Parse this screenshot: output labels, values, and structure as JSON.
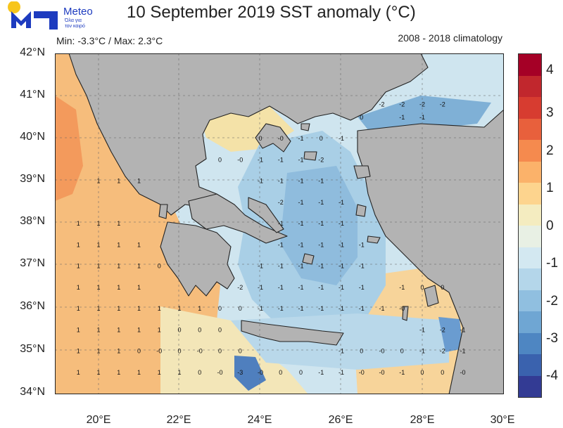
{
  "logo": {
    "brand": "Meteo",
    "tagline_1": "Όλα για",
    "tagline_2": "τον καιρό"
  },
  "title": "10 September 2019 SST anomaly (°C)",
  "minmax": "Min: -3.3°C / Max: 2.3°C",
  "climatology": "2008 - 2018 climatology",
  "lat_labels": [
    "42°N",
    "41°N",
    "40°N",
    "39°N",
    "38°N",
    "37°N",
    "36°N",
    "35°N",
    "34°N"
  ],
  "lon_labels": [
    "20°E",
    "22°E",
    "24°E",
    "26°E",
    "28°E",
    "30°E"
  ],
  "colorbar": {
    "colors": [
      "#a50026",
      "#c1272d",
      "#d73c30",
      "#e8603c",
      "#f58a4e",
      "#fbb26a",
      "#fdd48e",
      "#f4ecc0",
      "#e8f0e4",
      "#d3e8f1",
      "#b4d6ea",
      "#90bfe0",
      "#6fa6d3",
      "#4e86c2",
      "#3a62ae",
      "#333b94"
    ],
    "labels": [
      "4",
      "3",
      "2",
      "1",
      "0",
      "-1",
      "-2",
      "-3",
      "-4"
    ]
  },
  "grid_annotations": [
    {
      "lon": 20,
      "lat": 39,
      "t": "1"
    },
    {
      "lon": 20.5,
      "lat": 39,
      "t": "1"
    },
    {
      "lon": 21,
      "lat": 39,
      "t": "1"
    },
    {
      "lon": 19.5,
      "lat": 38,
      "t": "1"
    },
    {
      "lon": 20,
      "lat": 38,
      "t": "1"
    },
    {
      "lon": 20.5,
      "lat": 38,
      "t": "1"
    },
    {
      "lon": 19.5,
      "lat": 37.5,
      "t": "1"
    },
    {
      "lon": 20,
      "lat": 37.5,
      "t": "1"
    },
    {
      "lon": 20.5,
      "lat": 37.5,
      "t": "1"
    },
    {
      "lon": 21,
      "lat": 37.5,
      "t": "1"
    },
    {
      "lon": 19.5,
      "lat": 37,
      "t": "1"
    },
    {
      "lon": 20,
      "lat": 37,
      "t": "1"
    },
    {
      "lon": 20.5,
      "lat": 37,
      "t": "1"
    },
    {
      "lon": 21,
      "lat": 37,
      "t": "1"
    },
    {
      "lon": 21.5,
      "lat": 37,
      "t": "0"
    },
    {
      "lon": 19.5,
      "lat": 36.5,
      "t": "1"
    },
    {
      "lon": 20,
      "lat": 36.5,
      "t": "1"
    },
    {
      "lon": 20.5,
      "lat": 36.5,
      "t": "1"
    },
    {
      "lon": 21,
      "lat": 36.5,
      "t": "1"
    },
    {
      "lon": 19.5,
      "lat": 36,
      "t": "1"
    },
    {
      "lon": 20,
      "lat": 36,
      "t": "1"
    },
    {
      "lon": 20.5,
      "lat": 36,
      "t": "1"
    },
    {
      "lon": 21,
      "lat": 36,
      "t": "1"
    },
    {
      "lon": 21.5,
      "lat": 36,
      "t": "1"
    },
    {
      "lon": 22,
      "lat": 36,
      "t": "1"
    },
    {
      "lon": 22.5,
      "lat": 36,
      "t": "1"
    },
    {
      "lon": 19.5,
      "lat": 35.5,
      "t": "1"
    },
    {
      "lon": 20,
      "lat": 35.5,
      "t": "1"
    },
    {
      "lon": 20.5,
      "lat": 35.5,
      "t": "1"
    },
    {
      "lon": 21,
      "lat": 35.5,
      "t": "1"
    },
    {
      "lon": 21.5,
      "lat": 35.5,
      "t": "1"
    },
    {
      "lon": 22,
      "lat": 35.5,
      "t": "0"
    },
    {
      "lon": 22.5,
      "lat": 35.5,
      "t": "0"
    },
    {
      "lon": 23,
      "lat": 35.5,
      "t": "0"
    },
    {
      "lon": 19.5,
      "lat": 35,
      "t": "1"
    },
    {
      "lon": 20,
      "lat": 35,
      "t": "1"
    },
    {
      "lon": 20.5,
      "lat": 35,
      "t": "1"
    },
    {
      "lon": 21,
      "lat": 35,
      "t": "0"
    },
    {
      "lon": 21.5,
      "lat": 35,
      "t": "-0"
    },
    {
      "lon": 22,
      "lat": 35,
      "t": "0"
    },
    {
      "lon": 22.5,
      "lat": 35,
      "t": "-0"
    },
    {
      "lon": 23,
      "lat": 35,
      "t": "0"
    },
    {
      "lon": 23.5,
      "lat": 35,
      "t": "0"
    },
    {
      "lon": 19.5,
      "lat": 34.5,
      "t": "1"
    },
    {
      "lon": 20,
      "lat": 34.5,
      "t": "1"
    },
    {
      "lon": 20.5,
      "lat": 34.5,
      "t": "1"
    },
    {
      "lon": 21,
      "lat": 34.5,
      "t": "1"
    },
    {
      "lon": 21.5,
      "lat": 34.5,
      "t": "1"
    },
    {
      "lon": 22,
      "lat": 34.5,
      "t": "1"
    },
    {
      "lon": 22.5,
      "lat": 34.5,
      "t": "0"
    },
    {
      "lon": 23,
      "lat": 34.5,
      "t": "-0"
    },
    {
      "lon": 23.5,
      "lat": 34.5,
      "t": "-3"
    },
    {
      "lon": 24,
      "lat": 34.5,
      "t": "-0"
    },
    {
      "lon": 24.5,
      "lat": 34.5,
      "t": "0"
    },
    {
      "lon": 25,
      "lat": 34.5,
      "t": "0"
    },
    {
      "lon": 25.5,
      "lat": 34.5,
      "t": "-1"
    },
    {
      "lon": 26,
      "lat": 34.5,
      "t": "-1"
    },
    {
      "lon": 26.5,
      "lat": 34.5,
      "t": "-0"
    },
    {
      "lon": 27,
      "lat": 34.5,
      "t": "-0"
    },
    {
      "lon": 27.5,
      "lat": 34.5,
      "t": "-1"
    },
    {
      "lon": 28,
      "lat": 34.5,
      "t": "0"
    },
    {
      "lon": 28.5,
      "lat": 34.5,
      "t": "0"
    },
    {
      "lon": 29,
      "lat": 34.5,
      "t": "-0"
    },
    {
      "lon": 23,
      "lat": 36,
      "t": "0"
    },
    {
      "lon": 23.5,
      "lat": 36,
      "t": "0"
    },
    {
      "lon": 24,
      "lat": 36,
      "t": "-1"
    },
    {
      "lon": 24.5,
      "lat": 36,
      "t": "-1"
    },
    {
      "lon": 25,
      "lat": 36,
      "t": "-1"
    },
    {
      "lon": 25.5,
      "lat": 36,
      "t": "-1"
    },
    {
      "lon": 26,
      "lat": 36,
      "t": "-1"
    },
    {
      "lon": 26.5,
      "lat": 36,
      "t": "-1"
    },
    {
      "lon": 27,
      "lat": 36,
      "t": "-1"
    },
    {
      "lon": 27.5,
      "lat": 36,
      "t": "-0"
    },
    {
      "lon": 26,
      "lat": 35,
      "t": "-1"
    },
    {
      "lon": 26.5,
      "lat": 35,
      "t": "0"
    },
    {
      "lon": 27,
      "lat": 35,
      "t": "-0"
    },
    {
      "lon": 27.5,
      "lat": 35,
      "t": "0"
    },
    {
      "lon": 28,
      "lat": 35,
      "t": "-1"
    },
    {
      "lon": 28.5,
      "lat": 35,
      "t": "-2"
    },
    {
      "lon": 29,
      "lat": 35,
      "t": "-1"
    },
    {
      "lon": 28,
      "lat": 35.5,
      "t": "-1"
    },
    {
      "lon": 28.5,
      "lat": 35.5,
      "t": "-2"
    },
    {
      "lon": 29,
      "lat": 35.5,
      "t": "-1"
    },
    {
      "lon": 27.5,
      "lat": 36.5,
      "t": "-1"
    },
    {
      "lon": 28,
      "lat": 36.5,
      "t": "0"
    },
    {
      "lon": 28.5,
      "lat": 36.5,
      "t": "0"
    },
    {
      "lon": 23.5,
      "lat": 36.5,
      "t": "-2"
    },
    {
      "lon": 24,
      "lat": 36.5,
      "t": "-1"
    },
    {
      "lon": 24.5,
      "lat": 36.5,
      "t": "-1"
    },
    {
      "lon": 25,
      "lat": 36.5,
      "t": "-1"
    },
    {
      "lon": 25.5,
      "lat": 36.5,
      "t": "-1"
    },
    {
      "lon": 26,
      "lat": 36.5,
      "t": "-1"
    },
    {
      "lon": 26.5,
      "lat": 36.5,
      "t": "-1"
    },
    {
      "lon": 24,
      "lat": 37,
      "t": "-1"
    },
    {
      "lon": 24.5,
      "lat": 37,
      "t": "-1"
    },
    {
      "lon": 25,
      "lat": 37,
      "t": "-1"
    },
    {
      "lon": 25.5,
      "lat": 37,
      "t": "-1"
    },
    {
      "lon": 26,
      "lat": 37,
      "t": "-1"
    },
    {
      "lon": 26.5,
      "lat": 37,
      "t": "-1"
    },
    {
      "lon": 24.5,
      "lat": 37.5,
      "t": "-1"
    },
    {
      "lon": 25,
      "lat": 37.5,
      "t": "-1"
    },
    {
      "lon": 25.5,
      "lat": 37.5,
      "t": "-1"
    },
    {
      "lon": 26,
      "lat": 37.5,
      "t": "-1"
    },
    {
      "lon": 26.5,
      "lat": 37.5,
      "t": "-1"
    },
    {
      "lon": 24.5,
      "lat": 38,
      "t": "-1"
    },
    {
      "lon": 25,
      "lat": 38,
      "t": "-1"
    },
    {
      "lon": 25.5,
      "lat": 38,
      "t": "-1"
    },
    {
      "lon": 26,
      "lat": 38,
      "t": "-1"
    },
    {
      "lon": 24.5,
      "lat": 38.5,
      "t": "-2"
    },
    {
      "lon": 25,
      "lat": 38.5,
      "t": "-1"
    },
    {
      "lon": 25.5,
      "lat": 38.5,
      "t": "-1"
    },
    {
      "lon": 26,
      "lat": 38.5,
      "t": "-1"
    },
    {
      "lon": 24,
      "lat": 39,
      "t": "-1"
    },
    {
      "lon": 24.5,
      "lat": 39,
      "t": "-1"
    },
    {
      "lon": 25,
      "lat": 39,
      "t": "-1"
    },
    {
      "lon": 25.5,
      "lat": 39,
      "t": "-1"
    },
    {
      "lon": 23,
      "lat": 39.5,
      "t": "0"
    },
    {
      "lon": 23.5,
      "lat": 39.5,
      "t": "-0"
    },
    {
      "lon": 24,
      "lat": 39.5,
      "t": "-1"
    },
    {
      "lon": 24.5,
      "lat": 39.5,
      "t": "-1"
    },
    {
      "lon": 25,
      "lat": 39.5,
      "t": "-1"
    },
    {
      "lon": 25.5,
      "lat": 39.5,
      "t": "-2"
    },
    {
      "lon": 24,
      "lat": 40,
      "t": "0"
    },
    {
      "lon": 24.5,
      "lat": 40,
      "t": "-0"
    },
    {
      "lon": 25,
      "lat": 40,
      "t": "-1"
    },
    {
      "lon": 25.5,
      "lat": 40,
      "t": "0"
    },
    {
      "lon": 26,
      "lat": 40,
      "t": "-1"
    },
    {
      "lon": 26.5,
      "lat": 40.5,
      "t": "0"
    },
    {
      "lon": 27,
      "lat": 40.8,
      "t": "-2"
    },
    {
      "lon": 27.5,
      "lat": 40.8,
      "t": "-2"
    },
    {
      "lon": 28,
      "lat": 40.8,
      "t": "-2"
    },
    {
      "lon": 28.5,
      "lat": 40.8,
      "t": "-2"
    },
    {
      "lon": 27.5,
      "lat": 40.5,
      "t": "-1"
    },
    {
      "lon": 28,
      "lat": 40.5,
      "t": "-1"
    }
  ]
}
